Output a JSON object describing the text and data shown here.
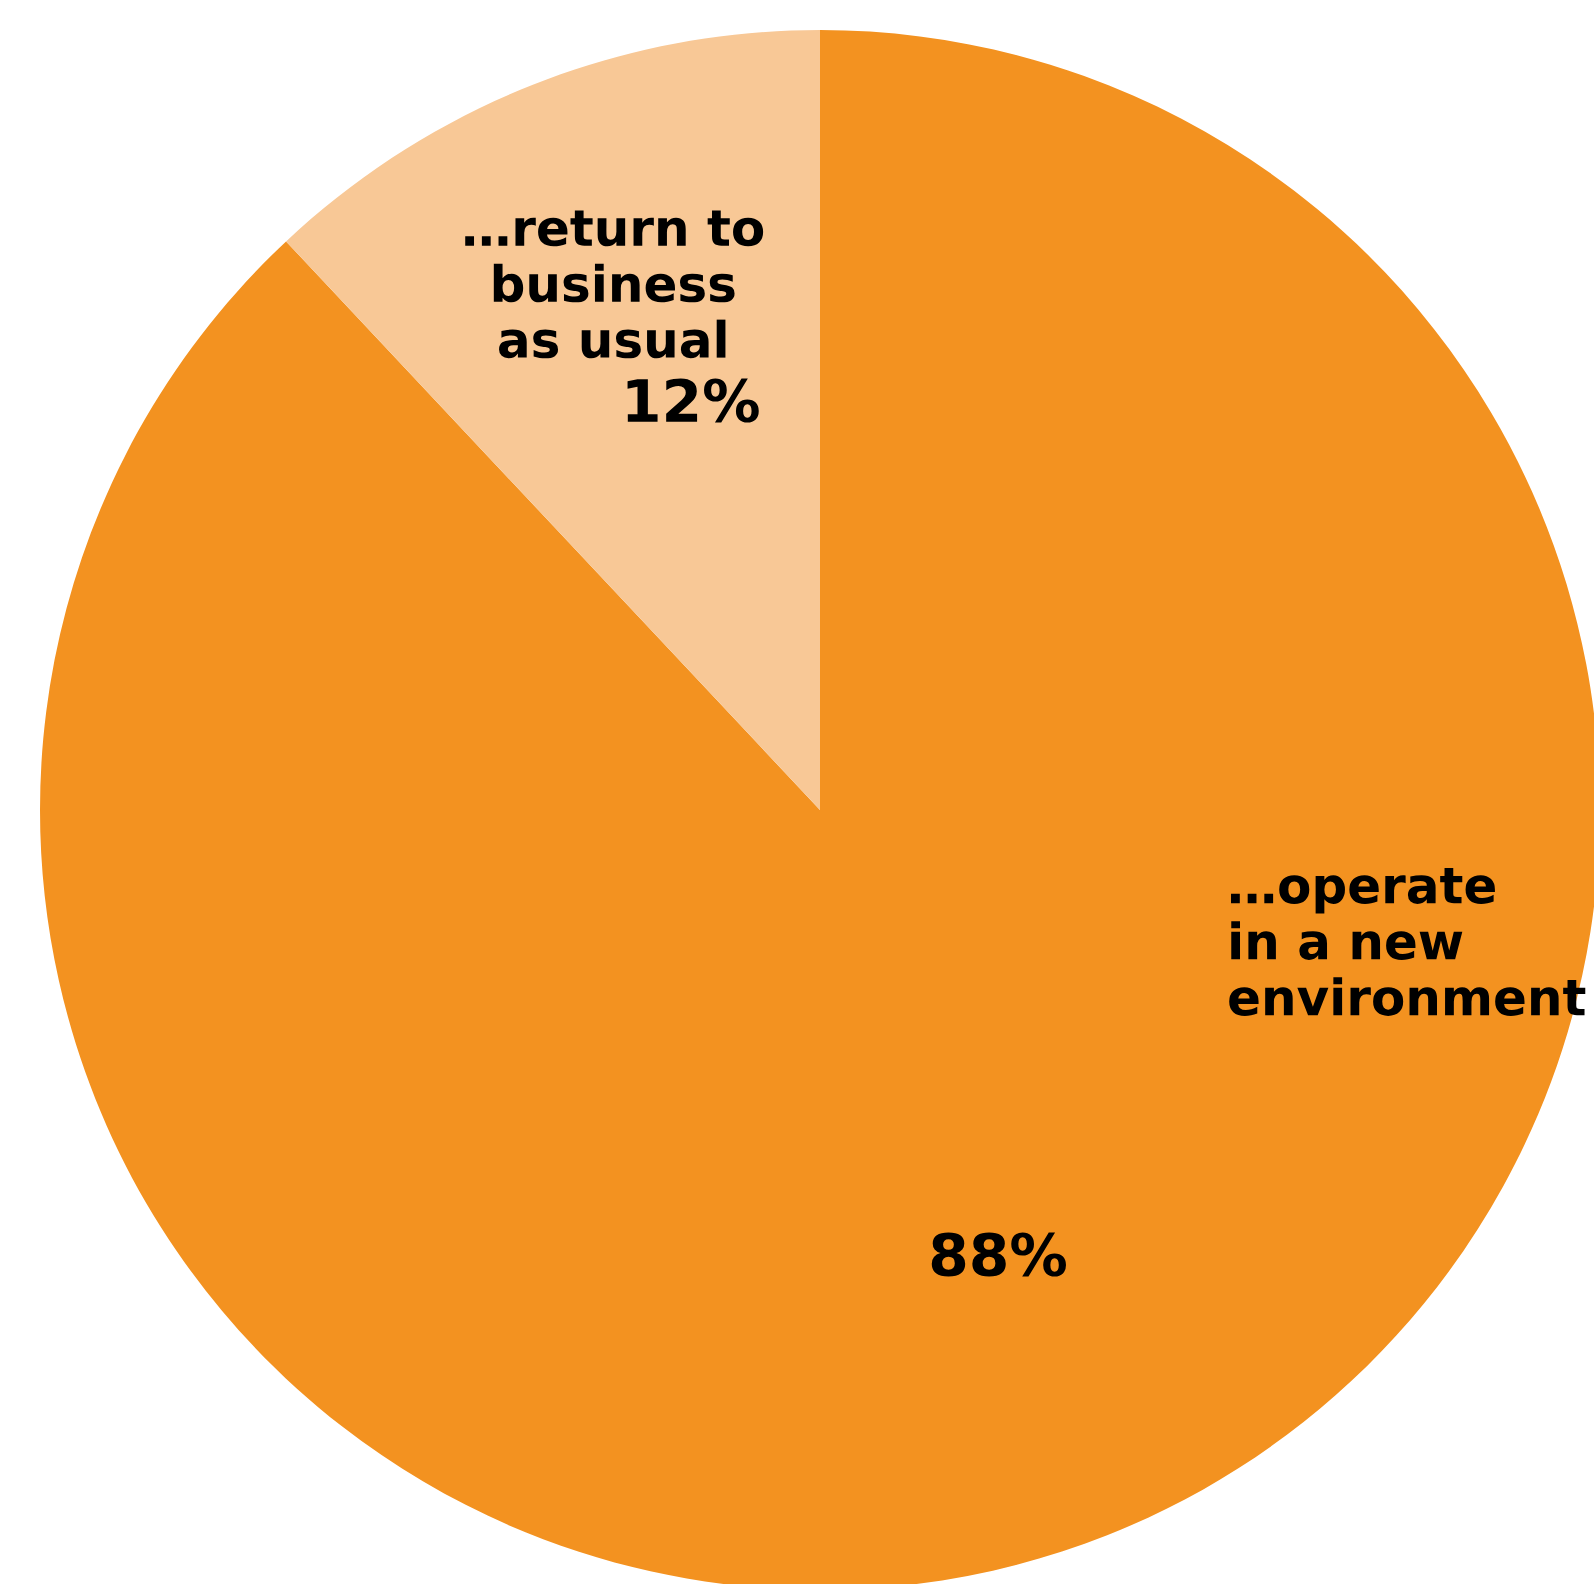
{
  "chart_data": {
    "type": "pie",
    "categories": [
      "…operate\nin a new\nenvironment",
      "…return to\nbusiness\nas usual"
    ],
    "values": [
      88,
      12
    ],
    "colors": [
      "#f39220",
      "#f8c896"
    ],
    "value_labels": [
      "88%",
      "12%"
    ],
    "legend": false
  }
}
